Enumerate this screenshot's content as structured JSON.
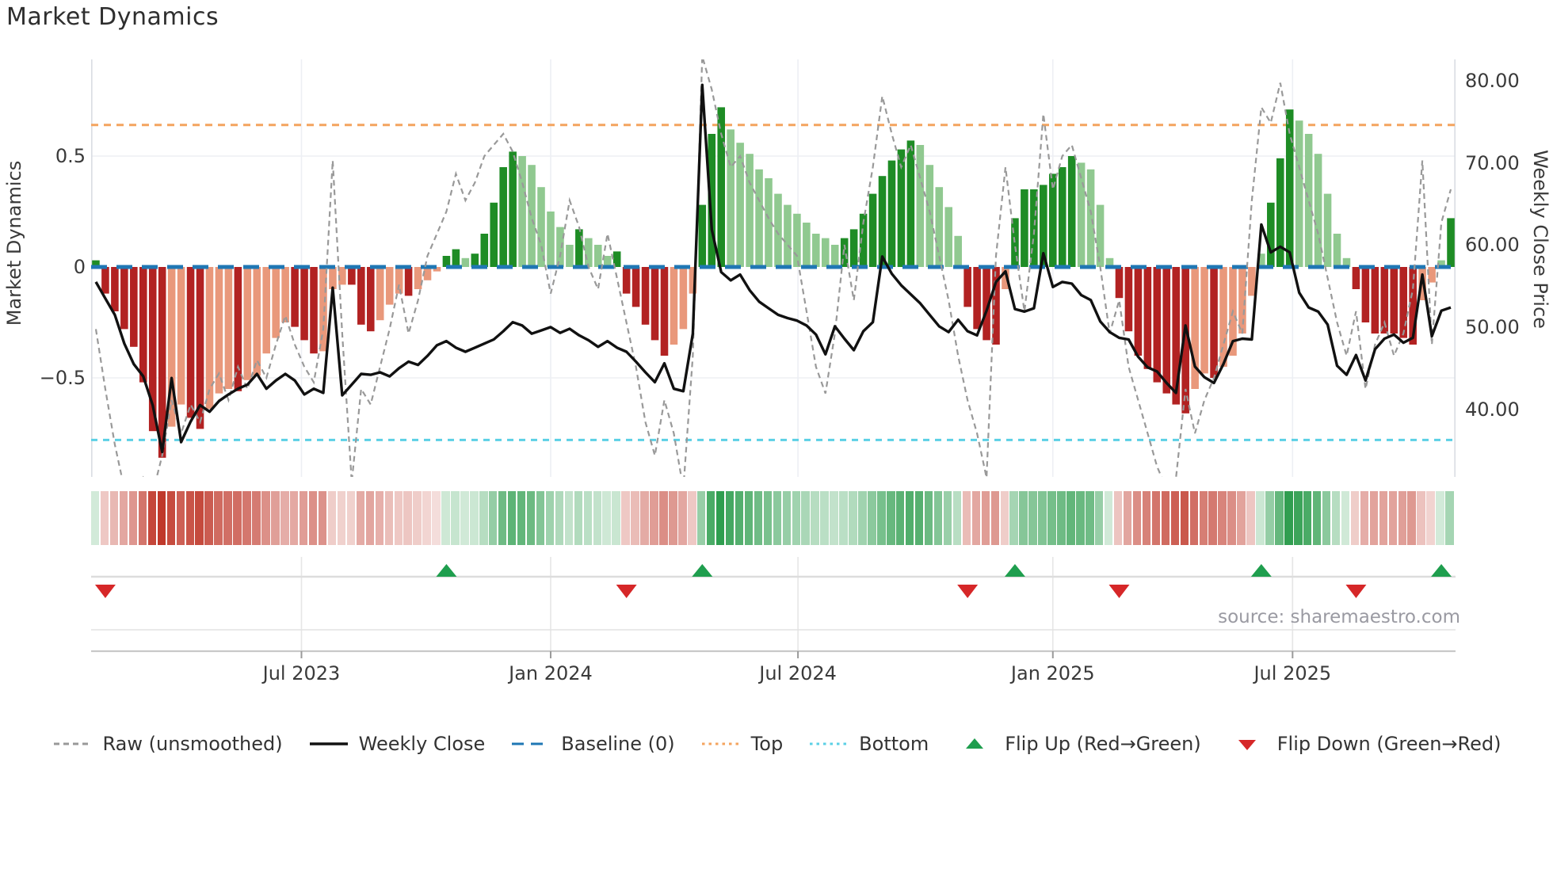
{
  "title": "Market Dynamics",
  "source": "source: sharemaestro.com",
  "axes": {
    "left": {
      "label": "Market Dynamics",
      "ticks": [
        "0.5",
        "0",
        "−0.5"
      ],
      "tick_values": [
        0.5,
        0,
        -0.5
      ]
    },
    "right": {
      "label": "Weekly Close Price",
      "ticks": [
        "80.00",
        "70.00",
        "60.00",
        "50.00",
        "40.00"
      ],
      "tick_values": [
        80,
        70,
        60,
        50,
        40
      ]
    },
    "x": {
      "ticks": [
        "Jul 2023",
        "Jan 2024",
        "Jul 2024",
        "Jan 2025",
        "Jul 2025"
      ],
      "pos_weeks": [
        22.2,
        48.5,
        74.6,
        101.5,
        126.8
      ]
    }
  },
  "colors": {
    "bar_neg_strong": "#b22222",
    "bar_neg_weak": "#e9987b",
    "bar_pos_strong": "#1e8c25",
    "bar_pos_weak": "#90c990",
    "close_line": "#111111",
    "raw_line": "#999999",
    "baseline": "#1f77b4",
    "top_line": "#f4a45f",
    "bottom_line": "#5bd0e5",
    "flip_up": "#1f9e4e",
    "flip_down": "#d62728",
    "heat_pos": "#2f9e4f",
    "heat_neg": "#c0392b",
    "grid": "#edeff4",
    "spine": "#d9dde3",
    "band_line": "#dddddd",
    "axis_spine": "#c8c8c8"
  },
  "legend": [
    {
      "id": "raw",
      "label": "Raw (unsmoothed)",
      "style": "dashed",
      "color": "#999999"
    },
    {
      "id": "close",
      "label": "Weekly Close",
      "style": "solid",
      "color": "#111111"
    },
    {
      "id": "baseline",
      "label": "Baseline (0)",
      "style": "dashed-long",
      "color": "#1f77b4"
    },
    {
      "id": "top",
      "label": "Top",
      "style": "dotted",
      "color": "#f4a45f"
    },
    {
      "id": "bottom",
      "label": "Bottom",
      "style": "dotted",
      "color": "#5bd0e5"
    },
    {
      "id": "flip-up",
      "label": "Flip Up (Red→Green)",
      "style": "triangle-up",
      "color": "#1f9e4e"
    },
    {
      "id": "flip-down",
      "label": "Flip Down (Green→Red)",
      "style": "triangle-down",
      "color": "#d62728"
    }
  ],
  "chart_data": {
    "type": "bar+line",
    "title": "Market Dynamics",
    "ylabel_left": "Market Dynamics",
    "ylabel_right": "Weekly Close Price",
    "n_weeks": 144,
    "x_range_note": "weekly points, Feb 2023 through Oct 2025",
    "left_ylim": [
      -0.95,
      0.94
    ],
    "right_ylim": [
      31.8,
      82.6
    ],
    "baseline": 0,
    "top": 0.64,
    "bottom": -0.78,
    "grid": true,
    "legend_position": "bottom",
    "flip_up_weeks": [
      37,
      64,
      97,
      123,
      142
    ],
    "flip_down_weeks": [
      1,
      56,
      92,
      108,
      133
    ],
    "oscillator": [
      0.03,
      -0.12,
      -0.2,
      -0.28,
      -0.36,
      -0.52,
      -0.74,
      -0.86,
      -0.72,
      -0.62,
      -0.68,
      -0.73,
      -0.64,
      -0.57,
      -0.55,
      -0.56,
      -0.51,
      -0.49,
      -0.39,
      -0.32,
      -0.25,
      -0.27,
      -0.33,
      -0.39,
      -0.38,
      -0.1,
      -0.08,
      -0.08,
      -0.26,
      -0.29,
      -0.24,
      -0.17,
      -0.12,
      -0.13,
      -0.1,
      -0.06,
      -0.02,
      0.05,
      0.08,
      0.04,
      0.06,
      0.15,
      0.29,
      0.45,
      0.52,
      0.5,
      0.46,
      0.36,
      0.25,
      0.18,
      0.1,
      0.17,
      0.13,
      0.1,
      0.05,
      0.07,
      -0.12,
      -0.18,
      -0.26,
      -0.33,
      -0.4,
      -0.35,
      -0.28,
      -0.12,
      0.28,
      0.6,
      0.72,
      0.62,
      0.56,
      0.51,
      0.44,
      0.4,
      0.33,
      0.28,
      0.24,
      0.2,
      0.15,
      0.13,
      0.1,
      0.13,
      0.17,
      0.24,
      0.33,
      0.41,
      0.48,
      0.53,
      0.57,
      0.55,
      0.46,
      0.36,
      0.27,
      0.14,
      -0.18,
      -0.28,
      -0.33,
      -0.35,
      -0.1,
      0.22,
      0.35,
      0.35,
      0.37,
      0.42,
      0.45,
      0.5,
      0.47,
      0.44,
      0.28,
      0.04,
      -0.14,
      -0.29,
      -0.4,
      -0.46,
      -0.52,
      -0.57,
      -0.62,
      -0.66,
      -0.55,
      -0.48,
      -0.5,
      -0.45,
      -0.4,
      -0.3,
      -0.13,
      0.06,
      0.29,
      0.49,
      0.71,
      0.66,
      0.6,
      0.51,
      0.33,
      0.15,
      0.04,
      -0.1,
      -0.25,
      -0.3,
      -0.3,
      -0.3,
      -0.32,
      -0.35,
      -0.15,
      -0.07,
      0.03,
      0.22
    ],
    "raw": [
      -0.28,
      -0.55,
      -0.8,
      -1.0,
      -1.05,
      -0.95,
      -1.02,
      -0.85,
      -0.6,
      -0.75,
      -0.62,
      -0.7,
      -0.55,
      -0.48,
      -0.6,
      -0.45,
      -0.55,
      -0.42,
      -0.5,
      -0.35,
      -0.22,
      -0.35,
      -0.45,
      -0.52,
      -0.28,
      0.48,
      -0.3,
      -0.97,
      -0.55,
      -0.62,
      -0.45,
      -0.28,
      -0.08,
      -0.3,
      -0.15,
      0.05,
      0.15,
      0.25,
      0.42,
      0.3,
      0.38,
      0.5,
      0.55,
      0.6,
      0.52,
      0.38,
      0.22,
      0.1,
      -0.12,
      0.05,
      0.3,
      0.18,
      0.0,
      -0.1,
      0.15,
      -0.05,
      -0.25,
      -0.45,
      -0.7,
      -0.85,
      -0.6,
      -0.75,
      -1.0,
      -0.4,
      0.95,
      0.8,
      0.6,
      0.45,
      0.5,
      0.38,
      0.3,
      0.22,
      0.15,
      0.1,
      0.05,
      -0.2,
      -0.45,
      -0.57,
      -0.3,
      0.1,
      -0.15,
      0.2,
      0.45,
      0.77,
      0.6,
      0.45,
      0.55,
      0.4,
      0.25,
      0.05,
      -0.15,
      -0.4,
      -0.6,
      -0.75,
      -0.95,
      0.05,
      0.45,
      0.1,
      -0.2,
      0.15,
      0.69,
      0.35,
      0.5,
      0.55,
      0.4,
      0.25,
      0.0,
      -0.3,
      -0.15,
      -0.45,
      -0.6,
      -0.75,
      -0.9,
      -1.0,
      -0.95,
      -0.55,
      -0.75,
      -0.6,
      -0.5,
      -0.35,
      -0.2,
      -0.3,
      0.3,
      0.72,
      0.65,
      0.83,
      0.6,
      0.45,
      0.3,
      0.15,
      -0.05,
      -0.25,
      -0.4,
      -0.2,
      -0.55,
      -0.35,
      -0.25,
      -0.4,
      -0.3,
      -0.1,
      0.48,
      -0.35,
      0.2,
      0.35
    ],
    "close": [
      55.5,
      53.5,
      51.5,
      48.0,
      45.5,
      44.0,
      40.5,
      34.8,
      43.8,
      36.0,
      38.5,
      40.5,
      39.7,
      41.0,
      41.8,
      42.5,
      43.0,
      44.3,
      42.5,
      43.5,
      44.3,
      43.5,
      41.8,
      42.5,
      42.0,
      54.8,
      41.7,
      43.0,
      44.3,
      44.2,
      44.5,
      44.0,
      45.0,
      45.8,
      45.4,
      46.5,
      47.8,
      48.3,
      47.5,
      47.0,
      47.5,
      48.0,
      48.5,
      49.5,
      50.6,
      50.2,
      49.2,
      49.6,
      50.0,
      49.3,
      49.8,
      49.0,
      48.4,
      47.6,
      48.3,
      47.5,
      47.0,
      45.8,
      44.5,
      43.3,
      45.6,
      42.5,
      42.2,
      49.2,
      79.5,
      61.9,
      56.7,
      55.7,
      56.4,
      54.5,
      53.1,
      52.3,
      51.5,
      51.1,
      50.8,
      50.2,
      49.1,
      46.7,
      50.1,
      48.6,
      47.2,
      49.5,
      50.6,
      58.6,
      56.5,
      55.1,
      54.0,
      52.9,
      51.5,
      50.1,
      49.4,
      50.9,
      49.5,
      49.0,
      52.0,
      55.5,
      56.8,
      52.2,
      51.9,
      52.3,
      59.0,
      54.9,
      55.5,
      55.3,
      53.9,
      53.3,
      50.7,
      49.4,
      48.7,
      48.5,
      46.4,
      45.1,
      44.6,
      43.2,
      42.0,
      50.2,
      45.2,
      43.9,
      43.2,
      45.5,
      48.3,
      48.6,
      48.5,
      62.5,
      59.1,
      59.8,
      59.1,
      54.2,
      52.4,
      51.9,
      50.3,
      45.3,
      44.2,
      46.6,
      43.5,
      47.3,
      48.6,
      49.1,
      48.1,
      48.7,
      56.4,
      48.9,
      52.0,
      52.4
    ]
  }
}
